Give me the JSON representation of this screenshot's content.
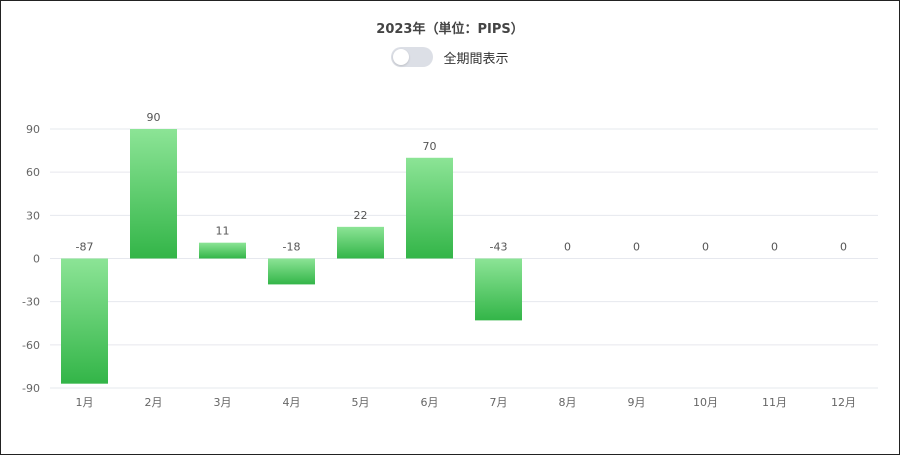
{
  "title": "2023年（単位：PIPS）",
  "toggle": {
    "label": "全期間表示",
    "on": false
  },
  "colors": {
    "bar_top": "#8ce496",
    "bar_bottom": "#33b548",
    "grid": "#e6e8ee",
    "toggle_off": "#dcdfe6"
  },
  "chart_data": {
    "type": "bar",
    "title": "2023年（単位：PIPS）",
    "categories": [
      "1月",
      "2月",
      "3月",
      "4月",
      "5月",
      "6月",
      "7月",
      "8月",
      "9月",
      "10月",
      "11月",
      "12月"
    ],
    "series": [
      {
        "values": [
          -87,
          90,
          11,
          -18,
          22,
          70,
          -43,
          0,
          0,
          0,
          0,
          0
        ]
      }
    ],
    "data_labels": [
      "-87",
      "90",
      "11",
      "-18",
      "22",
      "70",
      "-43",
      "0",
      "0",
      "0",
      "0",
      "0"
    ],
    "ylim": [
      -90,
      90
    ],
    "yticks": [
      90,
      60,
      30,
      0,
      -30,
      -60,
      -90
    ],
    "ytick_labels": [
      "90",
      "60",
      "30",
      "0",
      "-30",
      "-60",
      "-90"
    ],
    "grid": true,
    "legend": "none"
  }
}
